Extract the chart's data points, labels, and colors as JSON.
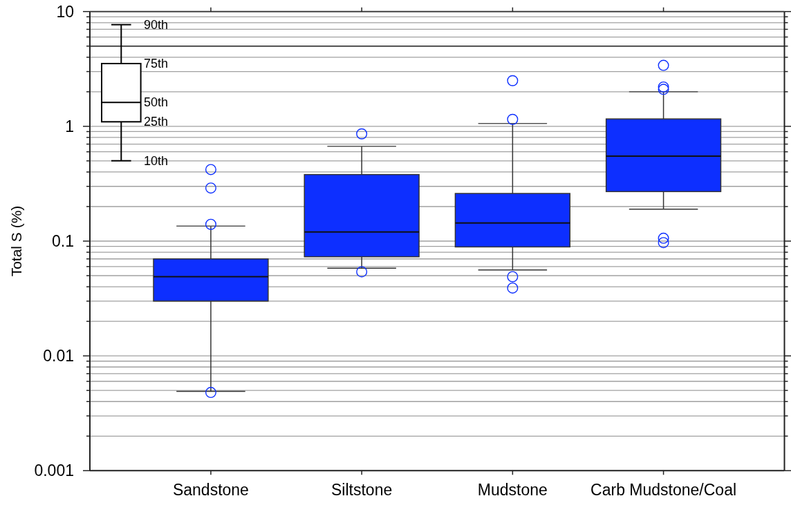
{
  "chart_data": {
    "type": "box",
    "ylabel": "Total S (%)",
    "categories": [
      "Sandstone",
      "Siltstone",
      "Mudstone",
      "Carb Mudstone/Coal"
    ],
    "series": [
      {
        "color": "#0d2fff",
        "boxes": [
          {
            "low": 0.0049,
            "q1": 0.03,
            "median": 0.049,
            "q3": 0.07,
            "high": 0.135,
            "outliers": [
              0.42,
              0.29,
              0.14,
              0.0048
            ]
          },
          {
            "low": 0.058,
            "q1": 0.073,
            "median": 0.12,
            "q3": 0.38,
            "high": 0.67,
            "outliers": [
              0.86,
              0.054
            ]
          },
          {
            "low": 0.056,
            "q1": 0.089,
            "median": 0.144,
            "q3": 0.26,
            "high": 1.06,
            "outliers": [
              2.5,
              1.15,
              0.049,
              0.039
            ]
          },
          {
            "low": 0.19,
            "q1": 0.27,
            "median": 0.55,
            "q3": 1.16,
            "high": 2.0,
            "outliers": [
              3.4,
              2.2,
              2.1,
              0.106,
              0.097
            ]
          }
        ]
      }
    ],
    "log": true,
    "ylim": [
      0.001,
      10
    ],
    "yticks": [
      0.001,
      {
        "value": 0.002,
        "label": null
      },
      {
        "value": 0.003,
        "label": null
      },
      {
        "value": 0.004,
        "label": null
      },
      {
        "value": 0.005,
        "label": null
      },
      {
        "value": 0.006,
        "label": null
      },
      {
        "value": 0.007,
        "label": null
      },
      {
        "value": 0.008,
        "label": null
      },
      {
        "value": 0.009,
        "label": null
      },
      0.01,
      {
        "value": 0.02,
        "label": null
      },
      {
        "value": 0.03,
        "label": null
      },
      {
        "value": 0.04,
        "label": null
      },
      {
        "value": 0.05,
        "label": null
      },
      {
        "value": 0.06,
        "label": null
      },
      {
        "value": 0.07,
        "label": null
      },
      {
        "value": 0.08,
        "label": null
      },
      {
        "value": 0.09,
        "label": null
      },
      0.1,
      {
        "value": 0.2,
        "label": null
      },
      {
        "value": 0.3,
        "label": null
      },
      {
        "value": 0.4,
        "label": null
      },
      {
        "value": 0.5,
        "label": null
      },
      {
        "value": 0.6,
        "label": null
      },
      {
        "value": 0.7,
        "label": null
      },
      {
        "value": 0.8,
        "label": null
      },
      {
        "value": 0.9,
        "label": null
      },
      1,
      {
        "value": 2,
        "label": null
      },
      {
        "value": 3,
        "label": null
      },
      {
        "value": 4,
        "label": null
      },
      {
        "value": 5,
        "label": null
      },
      {
        "value": 6,
        "label": null
      },
      {
        "value": 7,
        "label": null
      },
      {
        "value": 8,
        "label": null
      },
      {
        "value": 9,
        "label": null
      },
      10
    ],
    "grid": "y",
    "ref_lines": [
      {
        "axis": "y",
        "value": 5,
        "color": "#222222"
      }
    ],
    "annotations": [
      "90th",
      "75th",
      "50th",
      "25th",
      "10th"
    ]
  }
}
